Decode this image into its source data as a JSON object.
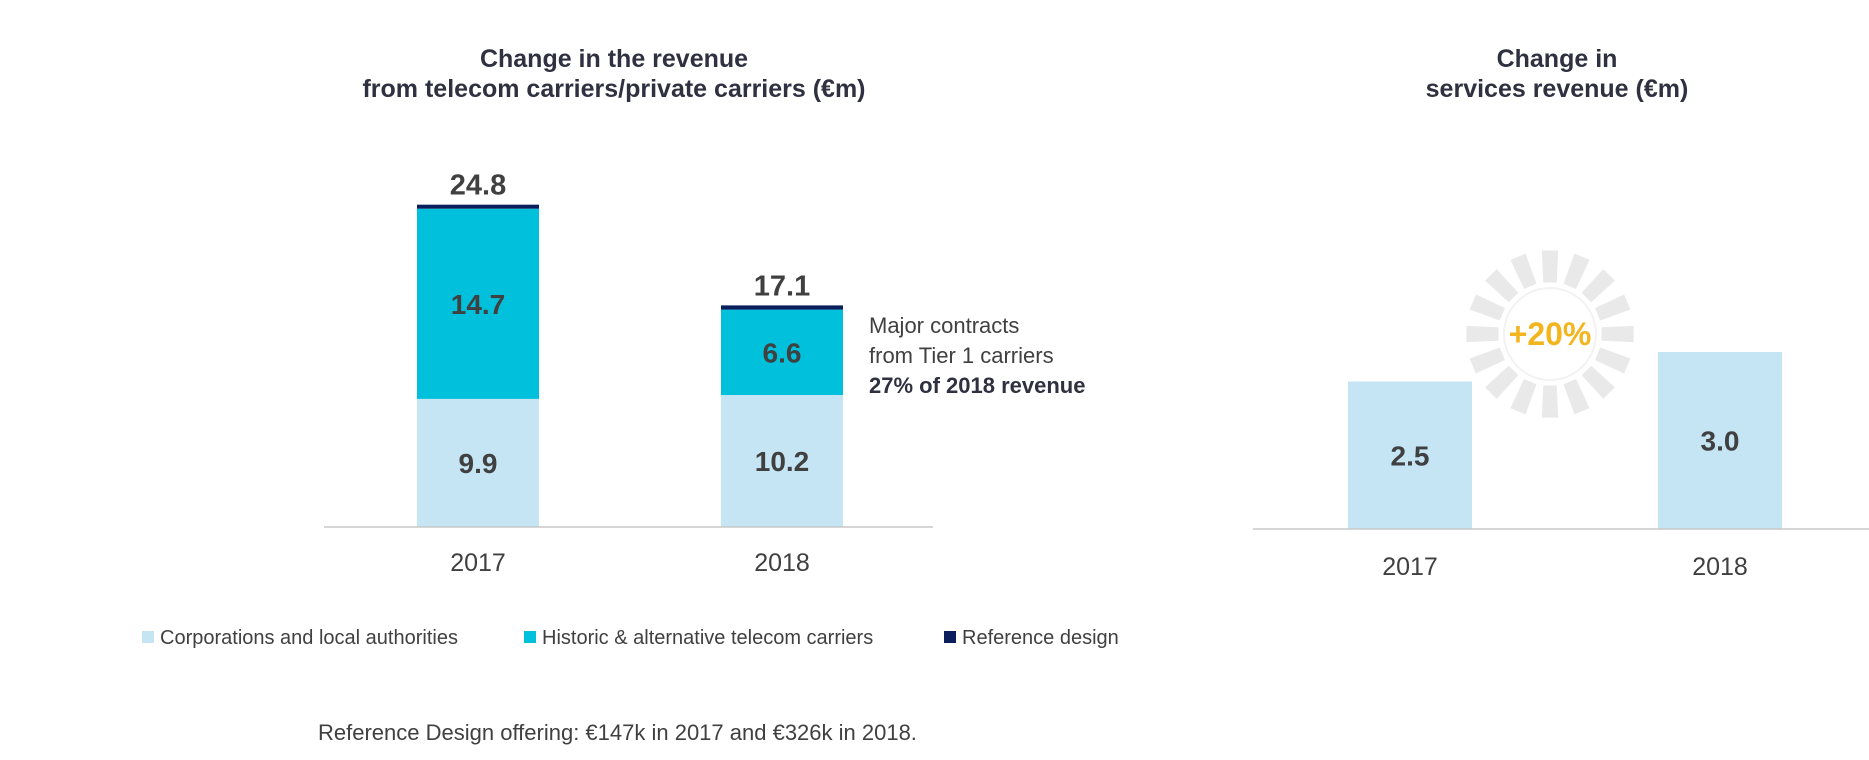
{
  "colors": {
    "corporations": "#c5e4f4",
    "historic": "#00c0dc",
    "reference": "#0b1f5c",
    "services": "#c5e4f4",
    "title": "#2f3040",
    "text": "#404040",
    "axis": "#c8c8c8",
    "badge_text": "#f2b51d",
    "badge_rays": "#e9e9e9"
  },
  "left_chart": {
    "title_line1": "Change in the revenue",
    "title_line2": "from telecom carriers/private carriers (€m)",
    "annotation_line1": "Major contracts",
    "annotation_line2": "from Tier 1 carriers",
    "annotation_line3": "27% of 2018 revenue"
  },
  "right_chart": {
    "title_line1": "Change in",
    "title_line2": "services revenue (€m)",
    "badge": "+20%"
  },
  "footnote": "Reference Design offering: €147k in 2017 and €326k in 2018.",
  "chart_data": [
    {
      "type": "bar",
      "stacked": true,
      "title": "Change in the revenue from telecom carriers/private carriers (€m)",
      "categories": [
        "2017",
        "2018"
      ],
      "series": [
        {
          "name": "Corporations and local authorities",
          "values": [
            9.9,
            10.2
          ],
          "labels": [
            "9.9",
            "10.2"
          ],
          "color": "#c5e4f4"
        },
        {
          "name": "Historic & alternative telecom carriers",
          "values": [
            14.7,
            6.6
          ],
          "labels": [
            "14.7",
            "6.6"
          ],
          "color": "#00c0dc"
        },
        {
          "name": "Reference design",
          "values": [
            0.147,
            0.326
          ],
          "labels": [
            "",
            ""
          ],
          "color": "#0b1f5c"
        }
      ],
      "totals": [
        "24.8",
        "17.1"
      ],
      "legend": "bottom",
      "grid": false
    },
    {
      "type": "bar",
      "title": "Change in services revenue (€m)",
      "categories": [
        "2017",
        "2018"
      ],
      "values": [
        2.5,
        3.0
      ],
      "labels": [
        "2.5",
        "3.0"
      ],
      "color": "#c5e4f4",
      "grid": false
    }
  ]
}
